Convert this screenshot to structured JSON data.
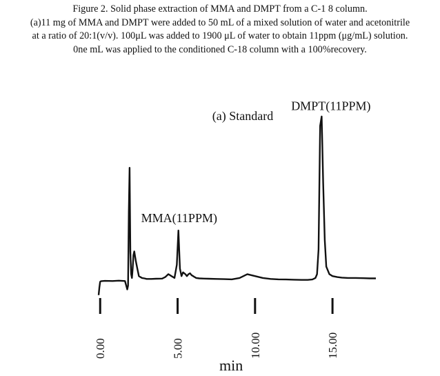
{
  "caption": {
    "lines": [
      "Figure 2. Solid phase extraction of MMA and DMPT from a C-1 8 column.",
      "(a)11 mg of MMA and DMPT were added to 50 mL of a mixed solution of water and acetonitrile",
      "at a ratio of 20:1(v/v). 100μL was added to 1900 μL of water to obtain 11ppm (μg/mL) solution.",
      "0ne mL was applied to the conditioned C-18 column with a 100%recovery."
    ]
  },
  "chart_data": {
    "type": "line",
    "title": "(a) Standard",
    "xlabel": "min",
    "ylabel": "",
    "xlim": [
      -0.1,
      17.8
    ],
    "ylim": [
      -2,
      100
    ],
    "x_ticks": [
      "0.00",
      "5.00",
      "10.00",
      "15.00"
    ],
    "x_tick_values": [
      0,
      5,
      10,
      15
    ],
    "annotations": [
      {
        "text": "MMA(11PPM)",
        "x": 5.1,
        "y": 38
      },
      {
        "text": "DMPT(11PPM)",
        "x": 14.9,
        "y": 97
      }
    ],
    "series": [
      {
        "x": [
          -0.1,
          -0.05,
          0.0,
          0.05,
          0.3,
          0.8,
          1.2,
          1.6,
          1.7,
          1.75,
          1.8,
          1.85,
          1.9,
          1.95,
          2.0,
          2.05,
          2.1,
          2.15,
          2.2,
          2.3,
          2.4,
          2.5,
          2.6,
          2.7,
          2.85,
          3.0,
          3.3,
          3.6,
          4.0,
          4.2,
          4.4,
          4.6,
          4.8,
          4.95,
          5.05,
          5.15,
          5.25,
          5.35,
          5.5,
          5.6,
          5.7,
          5.8,
          5.9,
          6.0,
          6.1,
          6.2,
          6.4,
          6.7,
          7.0,
          7.5,
          8.0,
          8.5,
          9.0,
          9.5,
          10.0,
          10.5,
          11.0,
          11.5,
          12.0,
          12.5,
          13.0,
          13.4,
          13.7,
          13.9,
          14.0,
          14.1,
          14.2,
          14.3,
          14.4,
          14.5,
          14.6,
          14.8,
          15.0,
          15.3,
          15.6,
          16.0,
          16.5,
          17.0,
          17.4,
          17.8
        ],
        "values": [
          1,
          5,
          8,
          8.3,
          8.5,
          8.4,
          8.6,
          8.4,
          5.5,
          4,
          6,
          45,
          68,
          24,
          12,
          10,
          15,
          22,
          24,
          19,
          15,
          11,
          10.5,
          10,
          9.8,
          9.5,
          9.5,
          9.6,
          9.7,
          10.5,
          12,
          11,
          10,
          17,
          35,
          15,
          11,
          13,
          12,
          11,
          12,
          12.5,
          11.5,
          11,
          10.5,
          10,
          9.8,
          9.7,
          9.6,
          9.5,
          9.4,
          9.3,
          10,
          12,
          11,
          10,
          9.5,
          9.3,
          9.2,
          9.1,
          9,
          9,
          9.2,
          10,
          12,
          25,
          90,
          95,
          60,
          30,
          16,
          12,
          11,
          10.5,
          10.2,
          10,
          10,
          9.9,
          9.8,
          9.8
        ]
      }
    ],
    "colors": {
      "line": "#111111",
      "background": "#ffffff"
    }
  }
}
